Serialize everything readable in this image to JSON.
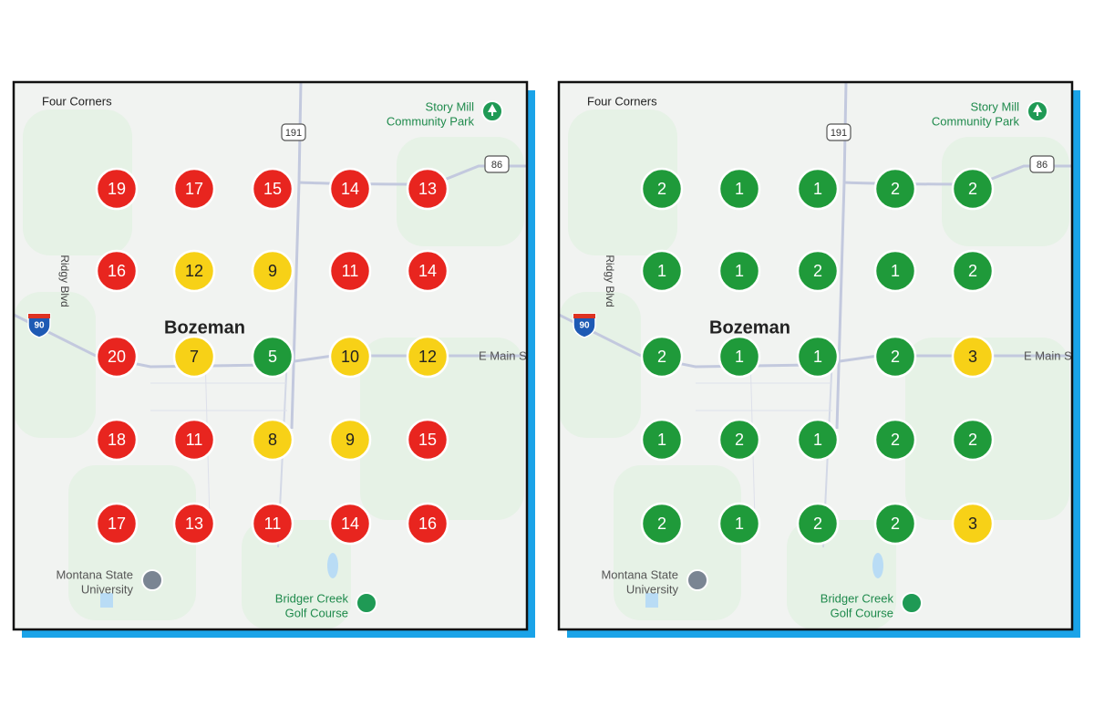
{
  "panels": [
    {
      "labels": {
        "four_corners": "Four Corners",
        "park": [
          "Story Mill",
          "Community Park"
        ],
        "hwy191": "191",
        "hwy86": "86",
        "i90": "90",
        "city": "Bozeman",
        "street": "E Main S",
        "road": "Ridgy Blvd",
        "university": [
          "Montana State",
          "University"
        ],
        "golf": [
          "Bridger Creek",
          "Golf Course"
        ]
      },
      "grid": [
        [
          {
            "value": 19,
            "color": "#e8251f"
          },
          {
            "value": 17,
            "color": "#e8251f"
          },
          {
            "value": 15,
            "color": "#e8251f"
          },
          {
            "value": 14,
            "color": "#e8251f"
          },
          {
            "value": 13,
            "color": "#e8251f"
          }
        ],
        [
          {
            "value": 16,
            "color": "#e8251f"
          },
          {
            "value": 12,
            "color": "#f7d117"
          },
          {
            "value": 9,
            "color": "#f7d117"
          },
          {
            "value": 11,
            "color": "#e8251f"
          },
          {
            "value": 14,
            "color": "#e8251f"
          }
        ],
        [
          {
            "value": 20,
            "color": "#e8251f"
          },
          {
            "value": 7,
            "color": "#f7d117"
          },
          {
            "value": 5,
            "color": "#1f9a3a"
          },
          {
            "value": 10,
            "color": "#f7d117"
          },
          {
            "value": 12,
            "color": "#f7d117"
          }
        ],
        [
          {
            "value": 18,
            "color": "#e8251f"
          },
          {
            "value": 11,
            "color": "#e8251f"
          },
          {
            "value": 8,
            "color": "#f7d117"
          },
          {
            "value": 9,
            "color": "#f7d117"
          },
          {
            "value": 15,
            "color": "#e8251f"
          }
        ],
        [
          {
            "value": 17,
            "color": "#e8251f"
          },
          {
            "value": 13,
            "color": "#e8251f"
          },
          {
            "value": 11,
            "color": "#e8251f"
          },
          {
            "value": 14,
            "color": "#e8251f"
          },
          {
            "value": 16,
            "color": "#e8251f"
          }
        ]
      ]
    },
    {
      "labels": {
        "four_corners": "Four Corners",
        "park": [
          "Story Mill",
          "Community Park"
        ],
        "hwy191": "191",
        "hwy86": "86",
        "i90": "90",
        "city": "Bozeman",
        "street": "E Main S",
        "road": "Ridgy Blvd",
        "university": [
          "Montana State",
          "University"
        ],
        "golf": [
          "Bridger Creek",
          "Golf Course"
        ]
      },
      "grid": [
        [
          {
            "value": 2,
            "color": "#1f9a3a"
          },
          {
            "value": 1,
            "color": "#1f9a3a"
          },
          {
            "value": 1,
            "color": "#1f9a3a"
          },
          {
            "value": 2,
            "color": "#1f9a3a"
          },
          {
            "value": 2,
            "color": "#1f9a3a"
          }
        ],
        [
          {
            "value": 1,
            "color": "#1f9a3a"
          },
          {
            "value": 1,
            "color": "#1f9a3a"
          },
          {
            "value": 2,
            "color": "#1f9a3a"
          },
          {
            "value": 1,
            "color": "#1f9a3a"
          },
          {
            "value": 2,
            "color": "#1f9a3a"
          }
        ],
        [
          {
            "value": 2,
            "color": "#1f9a3a"
          },
          {
            "value": 1,
            "color": "#1f9a3a"
          },
          {
            "value": 1,
            "color": "#1f9a3a"
          },
          {
            "value": 2,
            "color": "#1f9a3a"
          },
          {
            "value": 3,
            "color": "#f7d117"
          }
        ],
        [
          {
            "value": 1,
            "color": "#1f9a3a"
          },
          {
            "value": 2,
            "color": "#1f9a3a"
          },
          {
            "value": 1,
            "color": "#1f9a3a"
          },
          {
            "value": 2,
            "color": "#1f9a3a"
          },
          {
            "value": 2,
            "color": "#1f9a3a"
          }
        ],
        [
          {
            "value": 2,
            "color": "#1f9a3a"
          },
          {
            "value": 1,
            "color": "#1f9a3a"
          },
          {
            "value": 2,
            "color": "#1f9a3a"
          },
          {
            "value": 2,
            "color": "#1f9a3a"
          },
          {
            "value": 3,
            "color": "#f7d117"
          }
        ]
      ]
    }
  ]
}
